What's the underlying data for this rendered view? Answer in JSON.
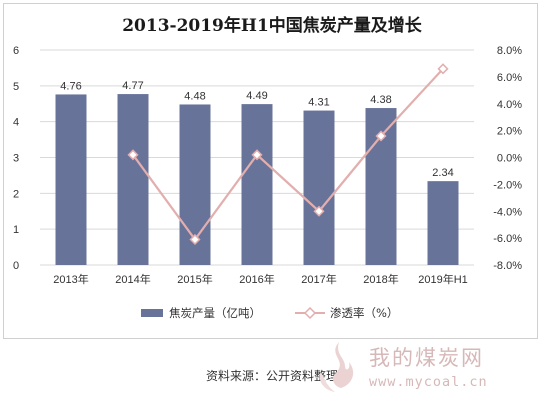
{
  "chart_data": {
    "type": "bar",
    "title": "2013-2019年H1中国焦炭产量及增长",
    "categories": [
      "2013年",
      "2014年",
      "2015年",
      "2016年",
      "2017年",
      "2018年",
      "2019年H1"
    ],
    "series": [
      {
        "name": "焦炭产量（亿吨）",
        "type": "bar",
        "axis": "left",
        "color": "#68739a",
        "values": [
          4.76,
          4.77,
          4.48,
          4.49,
          4.31,
          4.38,
          2.34
        ],
        "value_labels": [
          "4.76",
          "4.77",
          "4.48",
          "4.49",
          "4.31",
          "4.38",
          "2.34"
        ]
      },
      {
        "name": "渗透率（%）",
        "type": "line",
        "axis": "right",
        "color": "#e2aeae",
        "marker": "diamond",
        "values": [
          null,
          0.2,
          -6.1,
          0.2,
          -4.0,
          1.6,
          6.6
        ]
      }
    ],
    "left_axis": {
      "min": 0,
      "max": 6,
      "ticks": [
        "0",
        "1",
        "2",
        "3",
        "4",
        "5",
        "6"
      ]
    },
    "right_axis": {
      "min": -8,
      "max": 8,
      "ticks": [
        "-8.0%",
        "-6.0%",
        "-4.0%",
        "-2.0%",
        "0.0%",
        "2.0%",
        "4.0%",
        "6.0%",
        "8.0%"
      ]
    },
    "grid": true,
    "legend": "bottom",
    "legend_labels": [
      "焦炭产量（亿吨）",
      "渗透率（%）"
    ]
  },
  "source": "资料来源：公开资料整理",
  "watermark": {
    "name": "我的煤炭网",
    "url": "www.mycoal.cn"
  }
}
